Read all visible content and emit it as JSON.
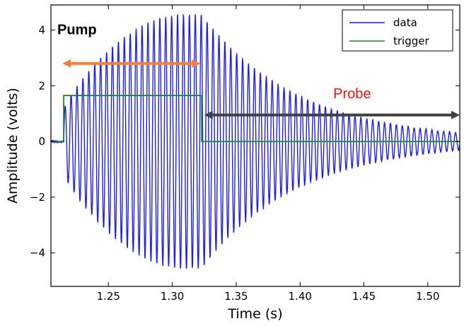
{
  "chart_data": {
    "type": "line",
    "xlabel": "Time (s)",
    "ylabel": "Amplitude (volts)",
    "xlim": [
      1.205,
      1.525
    ],
    "ylim": [
      -5.2,
      4.9
    ],
    "x_ticks": [
      1.25,
      1.3,
      1.35,
      1.4,
      1.45,
      1.5
    ],
    "x_tick_labels": [
      "1.25",
      "1.30",
      "1.35",
      "1.40",
      "1.45",
      "1.50"
    ],
    "y_ticks": [
      4,
      2,
      0,
      -2,
      -4
    ],
    "y_tick_labels": [
      "4",
      "2",
      "0",
      "−2",
      "−4"
    ],
    "legend": {
      "placement": "top-right"
    },
    "series": [
      {
        "name": "data",
        "color": "#1f1fe6",
        "kind": "damped-sinusoid",
        "frequency_hz": 216,
        "drive_start": 1.215,
        "drive_end": 1.323,
        "peak_amplitude": 4.55,
        "offset": 0.0,
        "decay_time_s": 0.075,
        "approx_points": [
          {
            "x": 1.215,
            "y": 0.0
          },
          {
            "x": 1.23,
            "y": 2.2
          },
          {
            "x": 1.25,
            "y": 3.6
          },
          {
            "x": 1.28,
            "y": -4.5
          },
          {
            "x": 1.32,
            "y": 4.55
          },
          {
            "x": 1.35,
            "y": 2.9
          },
          {
            "x": 1.4,
            "y": 1.1
          },
          {
            "x": 1.45,
            "y": 0.4
          },
          {
            "x": 1.5,
            "y": 0.15
          }
        ]
      },
      {
        "name": "trigger",
        "color": "#1d8c1d",
        "kind": "step",
        "points": [
          {
            "x": 1.205,
            "y": 0.0
          },
          {
            "x": 1.215,
            "y": 0.0
          },
          {
            "x": 1.215,
            "y": 1.65
          },
          {
            "x": 1.323,
            "y": 1.65
          },
          {
            "x": 1.323,
            "y": 0.0
          },
          {
            "x": 1.525,
            "y": 0.0
          }
        ]
      }
    ],
    "annotations": [
      {
        "text": "Pump",
        "x": 1.21,
        "y": 3.85,
        "arrow": {
          "from_x": 1.214,
          "to_x": 1.322,
          "y": 2.8,
          "color": "#f0803c"
        }
      },
      {
        "text": "Probe",
        "x": 1.426,
        "y": 1.55,
        "arrow": {
          "from_x": 1.325,
          "to_x": 1.525,
          "y": 0.95,
          "color": "#404040"
        }
      }
    ]
  }
}
